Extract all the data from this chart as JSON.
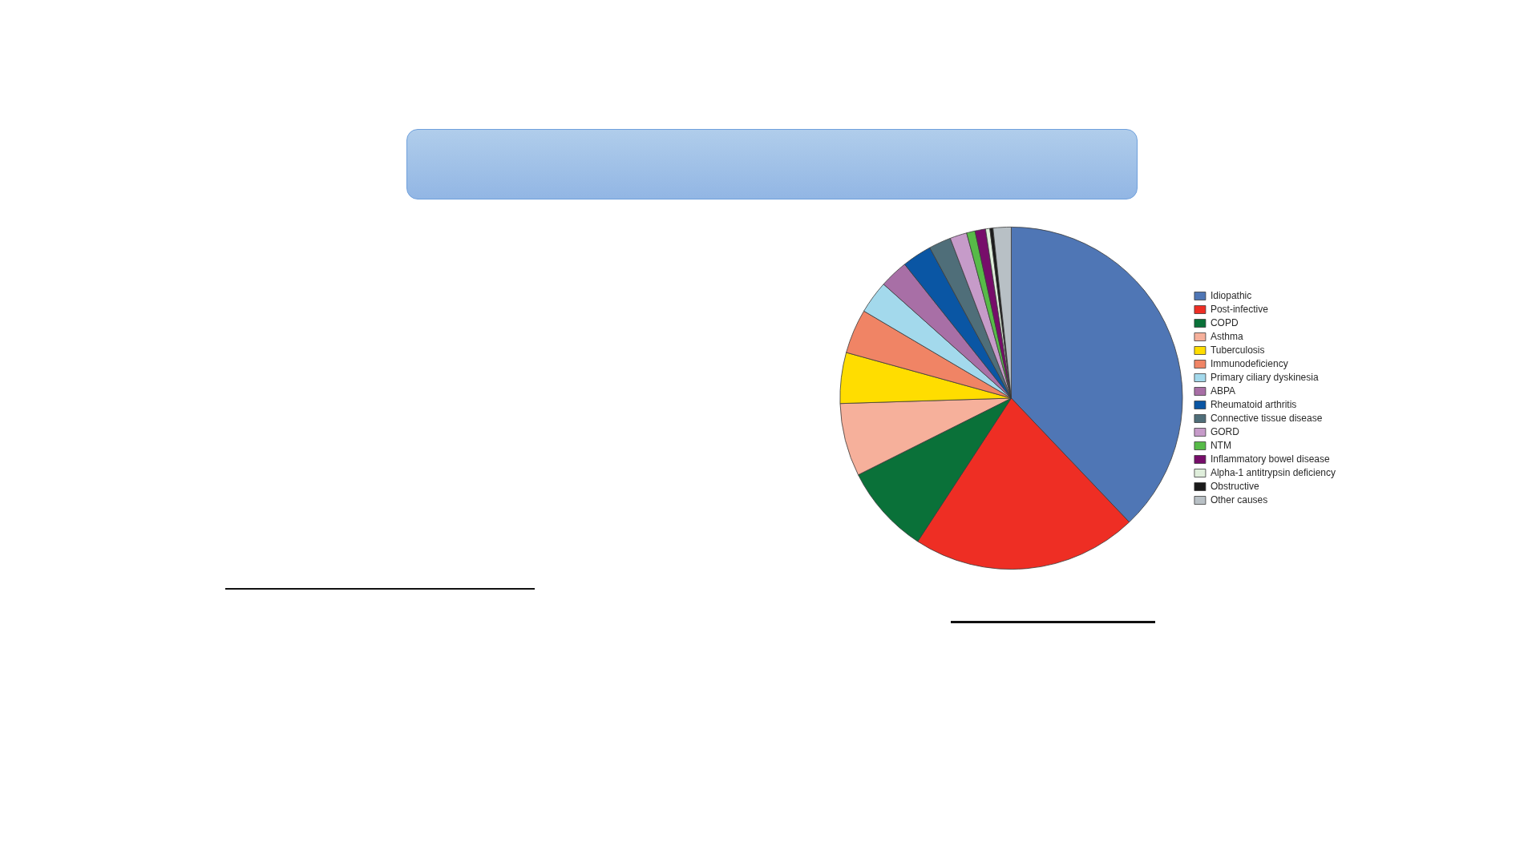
{
  "chart_data": {
    "type": "pie",
    "categories": [
      "Idiopathic",
      "Post-infective",
      "COPD",
      "Asthma",
      "Tuberculosis",
      "Immunodeficiency",
      "Primary ciliary dyskinesia",
      "ABPA",
      "Rheumatoid arthritis",
      "Connective tissue disease",
      "GORD",
      "NTM",
      "Inflammatory bowel disease",
      "Alpha-1 antitrypsin deficiency",
      "Obstructive",
      "Other causes"
    ],
    "values": [
      37.9,
      21.3,
      8.4,
      6.9,
      4.8,
      4.2,
      3.1,
      2.7,
      2.8,
      2.1,
      1.6,
      0.8,
      1.0,
      0.4,
      0.3,
      1.7
    ],
    "colors": [
      "#4f76b5",
      "#ee2e24",
      "#0a7139",
      "#f6b09b",
      "#ffdd00",
      "#f08465",
      "#a3d9ec",
      "#a86fa6",
      "#0a56a4",
      "#4f6e79",
      "#c69bc9",
      "#57bb48",
      "#770d6a",
      "#dfeedb",
      "#1a1a1a",
      "#b8c0c5"
    ],
    "legend": "right"
  }
}
